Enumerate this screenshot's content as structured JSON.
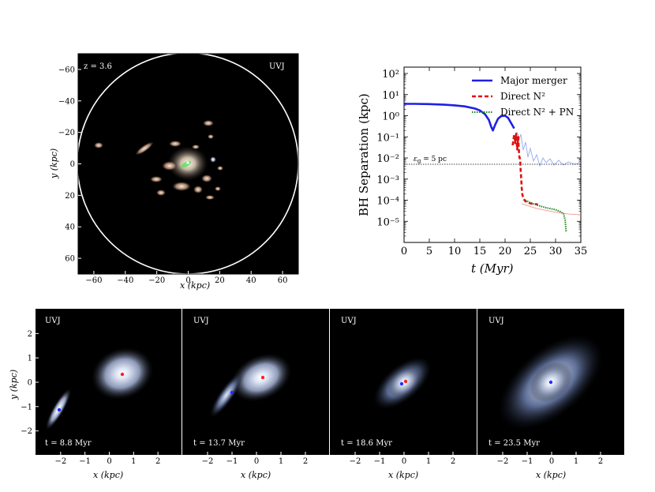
{
  "colors": {
    "major_merger": "#1f1fe6",
    "direct_n2": "#e01010",
    "direct_n2_pn": "#1a8a1a",
    "panel_bg": "#000000"
  },
  "top_left": {
    "redshift_label": "z = 3.6",
    "filter_label": "UVJ",
    "xlabel": "x (kpc)",
    "ylabel": "y (kpc)",
    "xticks": [
      "−60",
      "−40",
      "−20",
      "0",
      "20",
      "40",
      "60"
    ],
    "yticks": [
      "60",
      "40",
      "20",
      "0",
      "−20",
      "−40",
      "−60"
    ]
  },
  "chart_data": {
    "type": "line",
    "title": "",
    "xlabel": "t (Myr)",
    "ylabel": "BH Separation (kpc)",
    "xlim": [
      0,
      35
    ],
    "ylim_log10": [
      -6,
      2.3
    ],
    "xticks": [
      "0",
      "5",
      "10",
      "15",
      "20",
      "25",
      "30",
      "35"
    ],
    "yticks": [
      "10²",
      "10¹",
      "10⁰",
      "10⁻¹",
      "10⁻²",
      "10⁻³",
      "10⁻⁴",
      "10⁻⁵"
    ],
    "annotation": "ε_g = 5 pc",
    "softening_log10": -2.3,
    "series": [
      {
        "name": "Major merger",
        "style": "solid",
        "x": [
          0,
          2,
          5,
          8,
          10,
          12,
          14,
          15,
          16,
          16.8,
          17.3,
          17.6,
          18,
          18.6,
          19.2,
          20,
          20.6,
          21.2,
          21.8
        ],
        "log_y": [
          0.56,
          0.56,
          0.55,
          0.52,
          0.49,
          0.44,
          0.34,
          0.25,
          0.08,
          -0.2,
          -0.55,
          -0.7,
          -0.45,
          -0.15,
          -0.02,
          0.0,
          -0.1,
          -0.35,
          -0.6
        ]
      },
      {
        "name": "Direct N²",
        "style": "dashed",
        "x": [
          21.5,
          21.8,
          22.0,
          22.2,
          22.4,
          22.6,
          22.8,
          23.0,
          23.1,
          23.2,
          23.3,
          23.4,
          23.6,
          24.0,
          25.0,
          26.5
        ],
        "log_y": [
          -1.4,
          -0.9,
          -1.3,
          -0.85,
          -1.6,
          -1.0,
          -1.9,
          -2.1,
          -2.6,
          -3.0,
          -3.4,
          -3.7,
          -3.9,
          -4.05,
          -4.15,
          -4.2
        ]
      },
      {
        "name": "Direct N² + PN",
        "style": "dotted",
        "x": [
          24.0,
          25.0,
          26.0,
          27.0,
          28.0,
          29.0,
          30.0,
          31.0,
          31.6,
          31.9,
          32.1
        ],
        "log_y": [
          -4.0,
          -4.12,
          -4.2,
          -4.28,
          -4.35,
          -4.4,
          -4.45,
          -4.55,
          -4.65,
          -4.95,
          -5.5
        ]
      }
    ]
  },
  "bottom_panels": [
    {
      "filter": "UVJ",
      "time": "t = 8.8 Myr",
      "xlabel": "x (kpc)",
      "xticks": [
        "−2",
        "−1",
        "0",
        "1",
        "2"
      ]
    },
    {
      "filter": "UVJ",
      "time": "t = 13.7 Myr",
      "xlabel": "x (kpc)",
      "xticks": [
        "−2",
        "−1",
        "0",
        "1",
        "2"
      ]
    },
    {
      "filter": "UVJ",
      "time": "t = 18.6 Myr",
      "xlabel": "x (kpc)",
      "xticks": [
        "−2",
        "−1",
        "0",
        "1",
        "2"
      ]
    },
    {
      "filter": "UVJ",
      "time": "t = 23.5 Myr",
      "xlabel": "x (kpc)",
      "xticks": [
        "−2",
        "−1",
        "0",
        "1",
        "2"
      ]
    }
  ],
  "bottom_axis": {
    "ylabel": "y (kpc)",
    "yticks": [
      "2",
      "1",
      "0",
      "−1",
      "−2"
    ]
  }
}
